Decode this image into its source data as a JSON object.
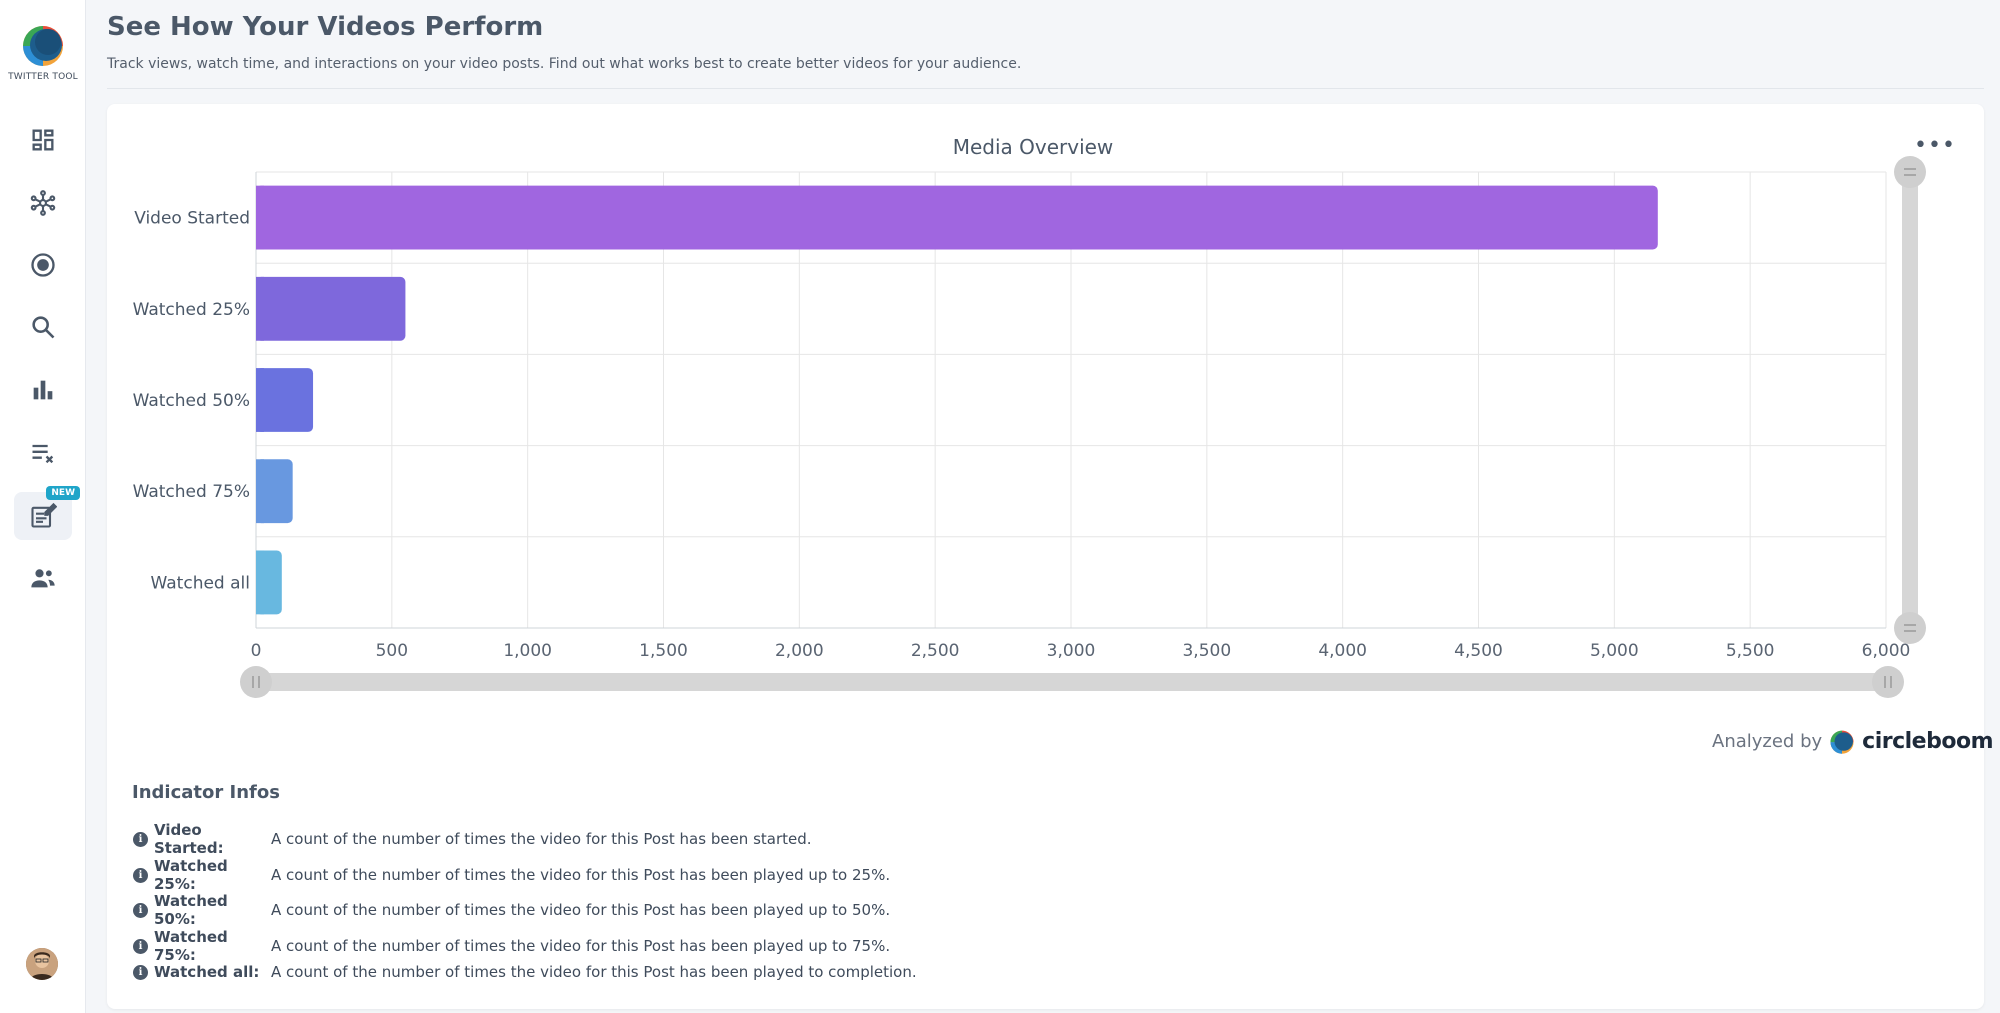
{
  "app": {
    "logo_text": "TWITTER TOOL",
    "new_badge": "NEW"
  },
  "sidebar": {
    "items": [
      {
        "icon": "dashboard-icon"
      },
      {
        "icon": "network-icon"
      },
      {
        "icon": "target-icon"
      },
      {
        "icon": "search-icon"
      },
      {
        "icon": "bar-chart-icon"
      },
      {
        "icon": "list-remove-icon"
      },
      {
        "icon": "post-edit-icon",
        "badge": "NEW"
      },
      {
        "icon": "users-icon"
      }
    ]
  },
  "header": {
    "title": "See How Your Videos Perform",
    "subtitle": "Track views, watch time, and interactions on your video posts. Find out what works best to create better videos for your audience."
  },
  "chart_data": {
    "type": "bar",
    "orientation": "horizontal",
    "title": "Media Overview",
    "categories": [
      "Video Started",
      "Watched 25%",
      "Watched 50%",
      "Watched 75%",
      "Watched all"
    ],
    "values": [
      5160,
      550,
      210,
      135,
      95
    ],
    "colors": [
      "#a066e0",
      "#7e68dc",
      "#6a72df",
      "#6898e0",
      "#68b8e0"
    ],
    "xlim": [
      0,
      6000
    ],
    "ticks": [
      "0",
      "500",
      "1,000",
      "1,500",
      "2,000",
      "2,500",
      "3,000",
      "3,500",
      "4,000",
      "4,500",
      "5,000",
      "5,500",
      "6,000"
    ],
    "grid": true
  },
  "footer": {
    "analyzed_label": "Analyzed by",
    "brand": "circleboom"
  },
  "indicators": {
    "title": "Indicator Infos",
    "items": [
      {
        "term": "Video Started:",
        "desc": "A count of the number of times the video for this Post has been started."
      },
      {
        "term": "Watched 25%:",
        "desc": "A count of the number of times the video for this Post has been played up to 25%."
      },
      {
        "term": "Watched 50%:",
        "desc": "A count of the number of times the video for this Post has been played up to 50%."
      },
      {
        "term": "Watched 75%:",
        "desc": "A count of the number of times the video for this Post has been played up to 75%."
      },
      {
        "term": "Watched all:",
        "desc": "A count of the number of times the video for this Post has been played to completion."
      }
    ]
  }
}
